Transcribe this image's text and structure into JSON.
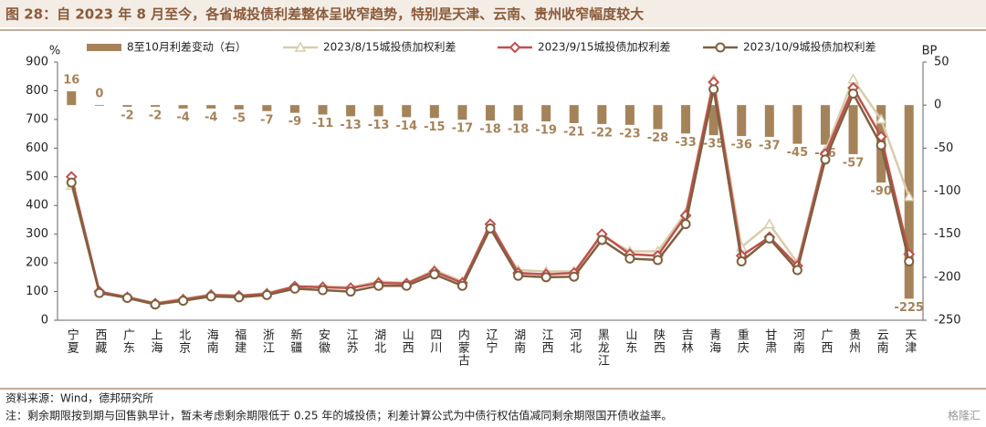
{
  "chart_data": {
    "type": "combo",
    "title": "图 28：自 2023 年 8 月至今，各省城投债利差整体呈收窄趋势，特别是天津、云南、贵州收窄幅度较大",
    "y_label": "%",
    "y2_label": "BP",
    "categories": [
      "宁夏",
      "西藏",
      "广东",
      "上海",
      "北京",
      "海南",
      "福建",
      "浙江",
      "新疆",
      "安徽",
      "江苏",
      "湖北",
      "山西",
      "四川",
      "内蒙古",
      "辽宁",
      "湖南",
      "江西",
      "河北",
      "黑龙江",
      "山东",
      "陕西",
      "吉林",
      "青海",
      "重庆",
      "甘肃",
      "河南",
      "广西",
      "贵州",
      "云南",
      "天津"
    ],
    "series": [
      {
        "name": "8至10月利差变动（右）",
        "type": "bar",
        "axis": "y2",
        "color": "#a5835a",
        "values": [
          16,
          0,
          -2,
          -2,
          -4,
          -4,
          -5,
          -7,
          -9,
          -11,
          -13,
          -13,
          -14,
          -15,
          -17,
          -18,
          -18,
          -19,
          -21,
          -22,
          -23,
          -28,
          -33,
          -35,
          -36,
          -37,
          -45,
          -46,
          -57,
          -90,
          -225
        ]
      },
      {
        "name": "2023/8/15城投债加权利差",
        "type": "line",
        "marker": "triangle",
        "color": "#d8ccaa",
        "values": [
          470,
          100,
          82,
          60,
          75,
          90,
          86,
          95,
          118,
          118,
          115,
          135,
          130,
          175,
          135,
          320,
          175,
          170,
          170,
          295,
          240,
          240,
          375,
          840,
          255,
          335,
          200,
          590,
          840,
          700,
          430
        ]
      },
      {
        "name": "2023/9/15城投债加权利差",
        "type": "line",
        "marker": "diamond",
        "color": "#c0504d",
        "values": [
          500,
          100,
          80,
          58,
          72,
          88,
          85,
          92,
          118,
          115,
          112,
          130,
          128,
          170,
          130,
          335,
          165,
          160,
          165,
          300,
          230,
          225,
          365,
          830,
          225,
          290,
          190,
          580,
          810,
          640,
          230
        ]
      },
      {
        "name": "2023/10/9城投债加权利差",
        "type": "line",
        "marker": "circle",
        "color": "#7f6040",
        "values": [
          480,
          95,
          78,
          55,
          68,
          83,
          80,
          88,
          110,
          105,
          100,
          120,
          120,
          160,
          120,
          320,
          155,
          150,
          152,
          280,
          215,
          210,
          335,
          805,
          205,
          285,
          175,
          560,
          790,
          610,
          205
        ]
      }
    ],
    "ylim": [
      0,
      900
    ],
    "yticks": [
      0,
      100,
      200,
      300,
      400,
      500,
      600,
      700,
      800,
      900
    ],
    "y2lim": [
      -250,
      50
    ],
    "y2ticks": [
      -250,
      -200,
      -150,
      -100,
      -50,
      0,
      50
    ],
    "source": "资料来源：Wind，德邦研究所",
    "note": "注：剩余期限按到期与回售孰早计，暂未考虑剩余期限低于 0.25 年的城投债；利差计算公式为中债行权估值减同剩余期限国开债收益率。",
    "watermark": "格隆汇"
  }
}
